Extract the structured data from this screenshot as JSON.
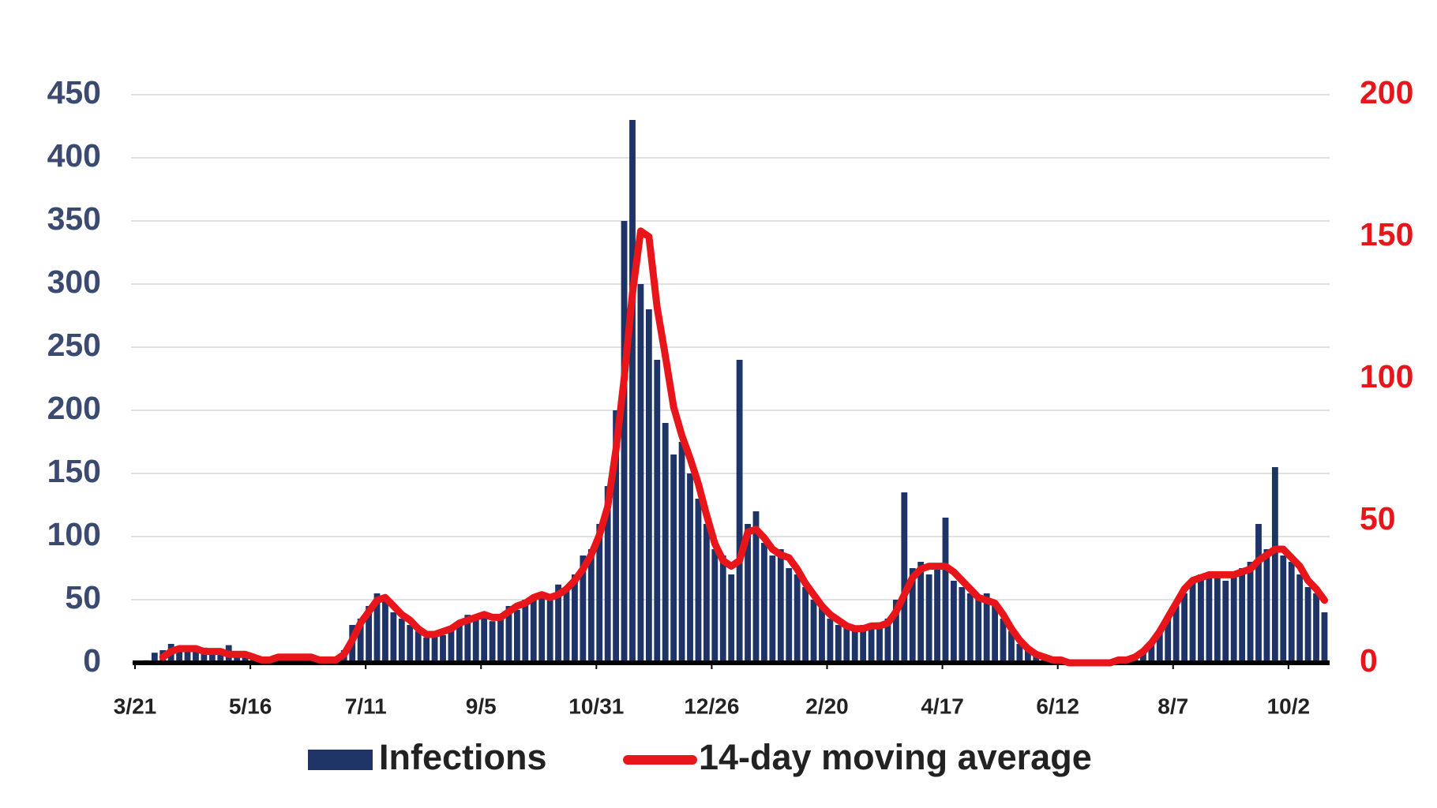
{
  "chart_data": {
    "type": "bar",
    "x": [
      0,
      4,
      8,
      12,
      16,
      20,
      24,
      28,
      32,
      36,
      40,
      44,
      48,
      52,
      56,
      60,
      64,
      68,
      72,
      76,
      80,
      84,
      88,
      92,
      96,
      100,
      104,
      108,
      112,
      116,
      120,
      124,
      128,
      132,
      136,
      140,
      144,
      148,
      152,
      156,
      160,
      164,
      168,
      172,
      176,
      180,
      184,
      188,
      192,
      196,
      200,
      204,
      208,
      212,
      216,
      220,
      224,
      228,
      232,
      236,
      240,
      244,
      248,
      252,
      256,
      260,
      264,
      268,
      272,
      276,
      280,
      284,
      288,
      292,
      296,
      300,
      304,
      308,
      312,
      316,
      320,
      324,
      328,
      332,
      336,
      340,
      344,
      348,
      352,
      356,
      360,
      364,
      368,
      372,
      376,
      380,
      384,
      388,
      392,
      396,
      400,
      404,
      408,
      412,
      416,
      420,
      424,
      428,
      432,
      436,
      440,
      444,
      448,
      452,
      456,
      460,
      464,
      468,
      472,
      476,
      480,
      484,
      488,
      492,
      496,
      500,
      504,
      508,
      512,
      516,
      520,
      524,
      528,
      532,
      536,
      540,
      544,
      548,
      552,
      556,
      560,
      564,
      568,
      572,
      576
    ],
    "series": [
      {
        "name": "Infections",
        "type": "bar",
        "color": "#1f3466",
        "values": [
          0,
          2,
          8,
          10,
          15,
          12,
          10,
          9,
          12,
          8,
          10,
          14,
          6,
          8,
          4,
          3,
          2,
          5,
          3,
          4,
          6,
          4,
          2,
          3,
          2,
          10,
          30,
          35,
          45,
          55,
          50,
          40,
          35,
          30,
          25,
          20,
          25,
          22,
          28,
          30,
          38,
          35,
          40,
          33,
          36,
          45,
          42,
          50,
          52,
          55,
          50,
          62,
          58,
          70,
          85,
          90,
          110,
          140,
          200,
          350,
          430,
          300,
          280,
          240,
          190,
          165,
          175,
          150,
          130,
          110,
          90,
          85,
          70,
          240,
          110,
          120,
          95,
          85,
          90,
          75,
          70,
          60,
          50,
          45,
          35,
          30,
          28,
          25,
          30,
          28,
          32,
          35,
          50,
          135,
          75,
          80,
          70,
          75,
          115,
          65,
          60,
          55,
          50,
          55,
          45,
          35,
          25,
          15,
          10,
          6,
          4,
          3,
          2,
          1,
          1,
          1,
          1,
          1,
          2,
          3,
          4,
          5,
          8,
          15,
          25,
          35,
          45,
          55,
          65,
          70,
          68,
          72,
          65,
          70,
          75,
          80,
          110,
          90,
          155,
          85,
          80,
          70,
          60,
          55,
          40
        ]
      },
      {
        "name": "14-day moving average",
        "type": "line",
        "axis": "y2",
        "color": "#e8161b",
        "values": [
          null,
          null,
          null,
          2,
          4,
          5,
          5,
          5,
          4,
          4,
          4,
          3,
          3,
          3,
          2,
          1,
          1,
          2,
          2,
          2,
          2,
          2,
          1,
          1,
          1,
          3,
          8,
          14,
          18,
          22,
          23,
          20,
          17,
          15,
          12,
          10,
          10,
          11,
          12,
          14,
          15,
          16,
          17,
          16,
          16,
          18,
          20,
          21,
          23,
          24,
          23,
          24,
          26,
          29,
          33,
          38,
          45,
          55,
          75,
          100,
          130,
          152,
          150,
          125,
          108,
          90,
          80,
          72,
          63,
          52,
          42,
          36,
          34,
          36,
          46,
          47,
          44,
          40,
          38,
          37,
          33,
          28,
          24,
          20,
          17,
          15,
          13,
          12,
          12,
          13,
          13,
          14,
          18,
          24,
          30,
          33,
          34,
          34,
          34,
          32,
          29,
          26,
          23,
          22,
          21,
          17,
          12,
          8,
          5,
          3,
          2,
          1,
          1,
          0,
          0,
          0,
          0,
          0,
          0,
          1,
          1,
          2,
          4,
          7,
          11,
          16,
          21,
          26,
          29,
          30,
          31,
          31,
          31,
          31,
          32,
          33,
          36,
          38,
          40,
          40,
          37,
          34,
          29,
          26,
          22
        ]
      }
    ],
    "xlim": [
      0,
      580
    ],
    "xticks": [
      {
        "value": 0,
        "label": "3/21"
      },
      {
        "value": 56,
        "label": "5/16"
      },
      {
        "value": 112,
        "label": "7/11"
      },
      {
        "value": 168,
        "label": "9/5"
      },
      {
        "value": 224,
        "label": "10/31"
      },
      {
        "value": 280,
        "label": "12/26"
      },
      {
        "value": 336,
        "label": "2/20"
      },
      {
        "value": 392,
        "label": "4/17"
      },
      {
        "value": 448,
        "label": "6/12"
      },
      {
        "value": 504,
        "label": "8/7"
      },
      {
        "value": 560,
        "label": "10/2"
      }
    ],
    "ylim": [
      0,
      450
    ],
    "yticks": [
      0,
      50,
      100,
      150,
      200,
      250,
      300,
      350,
      400,
      450
    ],
    "y2lim": [
      0,
      200
    ],
    "y2ticks": [
      0,
      50,
      100,
      150,
      200
    ],
    "grid": true,
    "legend": "bottom"
  }
}
